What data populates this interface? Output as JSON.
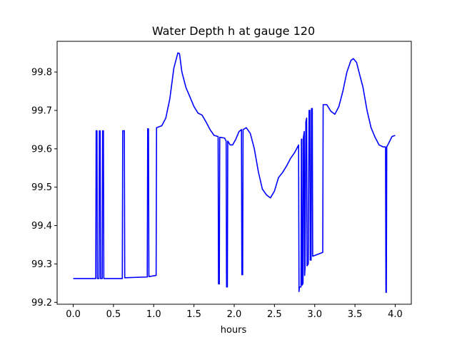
{
  "chart_data": {
    "type": "line",
    "title": "Water Depth h at gauge 120",
    "xlabel": "hours",
    "ylabel": "",
    "xlim": [
      -0.2,
      4.2
    ],
    "ylim": [
      99.195,
      99.88
    ],
    "xticks": [
      0.0,
      0.5,
      1.0,
      1.5,
      2.0,
      2.5,
      3.0,
      3.5,
      4.0
    ],
    "xtick_labels": [
      "0.0",
      "0.5",
      "1.0",
      "1.5",
      "2.0",
      "2.5",
      "3.0",
      "3.5",
      "4.0"
    ],
    "yticks": [
      99.2,
      99.3,
      99.4,
      99.5,
      99.6,
      99.7,
      99.8
    ],
    "ytick_labels": [
      "99.2",
      "99.3",
      "99.4",
      "99.5",
      "99.6",
      "99.7",
      "99.8"
    ],
    "grid": false,
    "legend": "none",
    "series": [
      {
        "color": "#0000ff",
        "points": [
          [
            0.0,
            99.262
          ],
          [
            0.28,
            99.262
          ],
          [
            0.285,
            99.647
          ],
          [
            0.295,
            99.647
          ],
          [
            0.3,
            99.262
          ],
          [
            0.32,
            99.262
          ],
          [
            0.325,
            99.647
          ],
          [
            0.335,
            99.647
          ],
          [
            0.34,
            99.262
          ],
          [
            0.36,
            99.262
          ],
          [
            0.365,
            99.647
          ],
          [
            0.375,
            99.647
          ],
          [
            0.38,
            99.262
          ],
          [
            0.61,
            99.262
          ],
          [
            0.615,
            99.647
          ],
          [
            0.635,
            99.647
          ],
          [
            0.64,
            99.264
          ],
          [
            0.92,
            99.266
          ],
          [
            0.925,
            99.652
          ],
          [
            0.935,
            99.652
          ],
          [
            0.94,
            99.267
          ],
          [
            1.03,
            99.27
          ],
          [
            1.035,
            99.655
          ],
          [
            1.1,
            99.66
          ],
          [
            1.15,
            99.68
          ],
          [
            1.2,
            99.73
          ],
          [
            1.25,
            99.81
          ],
          [
            1.3,
            99.85
          ],
          [
            1.32,
            99.848
          ],
          [
            1.35,
            99.8
          ],
          [
            1.4,
            99.76
          ],
          [
            1.45,
            99.735
          ],
          [
            1.5,
            99.71
          ],
          [
            1.55,
            99.693
          ],
          [
            1.6,
            99.688
          ],
          [
            1.65,
            99.67
          ],
          [
            1.7,
            99.65
          ],
          [
            1.75,
            99.635
          ],
          [
            1.8,
            99.632
          ],
          [
            1.805,
            99.248
          ],
          [
            1.815,
            99.248
          ],
          [
            1.82,
            99.63
          ],
          [
            1.88,
            99.628
          ],
          [
            1.9,
            99.62
          ],
          [
            1.905,
            99.24
          ],
          [
            1.915,
            99.24
          ],
          [
            1.92,
            99.62
          ],
          [
            1.95,
            99.61
          ],
          [
            1.98,
            99.61
          ],
          [
            2.02,
            99.625
          ],
          [
            2.06,
            99.645
          ],
          [
            2.09,
            99.65
          ],
          [
            2.095,
            99.272
          ],
          [
            2.105,
            99.272
          ],
          [
            2.11,
            99.65
          ],
          [
            2.15,
            99.655
          ],
          [
            2.2,
            99.64
          ],
          [
            2.25,
            99.6
          ],
          [
            2.3,
            99.54
          ],
          [
            2.35,
            99.495
          ],
          [
            2.4,
            99.48
          ],
          [
            2.45,
            99.472
          ],
          [
            2.5,
            99.49
          ],
          [
            2.55,
            99.525
          ],
          [
            2.6,
            99.538
          ],
          [
            2.65,
            99.555
          ],
          [
            2.7,
            99.575
          ],
          [
            2.75,
            99.59
          ],
          [
            2.8,
            99.61
          ],
          [
            2.805,
            99.228
          ],
          [
            2.81,
            99.24
          ],
          [
            2.83,
            99.24
          ],
          [
            2.835,
            99.625
          ],
          [
            2.84,
            99.625
          ],
          [
            2.845,
            99.245
          ],
          [
            2.855,
            99.25
          ],
          [
            2.86,
            99.63
          ],
          [
            2.87,
            99.645
          ],
          [
            2.875,
            99.27
          ],
          [
            2.88,
            99.29
          ],
          [
            2.89,
            99.67
          ],
          [
            2.9,
            99.68
          ],
          [
            2.905,
            99.295
          ],
          [
            2.92,
            99.3
          ],
          [
            2.93,
            99.7
          ],
          [
            2.94,
            99.7
          ],
          [
            2.945,
            99.31
          ],
          [
            2.955,
            99.31
          ],
          [
            2.96,
            99.705
          ],
          [
            2.97,
            99.705
          ],
          [
            2.975,
            99.32
          ],
          [
            3.1,
            99.33
          ],
          [
            3.105,
            99.715
          ],
          [
            3.15,
            99.715
          ],
          [
            3.2,
            99.698
          ],
          [
            3.25,
            99.69
          ],
          [
            3.3,
            99.71
          ],
          [
            3.35,
            99.75
          ],
          [
            3.4,
            99.8
          ],
          [
            3.45,
            99.83
          ],
          [
            3.48,
            99.835
          ],
          [
            3.52,
            99.825
          ],
          [
            3.55,
            99.8
          ],
          [
            3.6,
            99.76
          ],
          [
            3.65,
            99.7
          ],
          [
            3.7,
            99.655
          ],
          [
            3.75,
            99.63
          ],
          [
            3.8,
            99.61
          ],
          [
            3.85,
            99.605
          ],
          [
            3.88,
            99.605
          ],
          [
            3.885,
            99.226
          ],
          [
            3.89,
            99.226
          ],
          [
            3.895,
            99.605
          ],
          [
            3.92,
            99.615
          ],
          [
            3.96,
            99.632
          ],
          [
            4.0,
            99.635
          ]
        ]
      }
    ]
  }
}
